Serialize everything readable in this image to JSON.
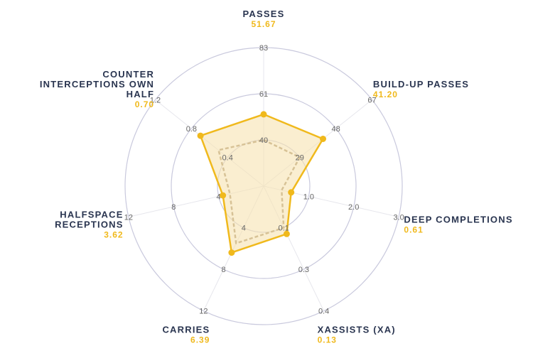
{
  "chart_data": {
    "type": "radar",
    "colors": {
      "player": "#f0b91c",
      "player_fill": "#f7e3b0",
      "average": "#a8926e",
      "ring": "#c9c9dd",
      "spoke": "#e6e6ec",
      "label": "#2a3550",
      "value": "#f0b91c",
      "tick": "#666666"
    },
    "axes": [
      {
        "name": "PASSES",
        "name_lines": [
          "PASSES"
        ],
        "value_text": "51.67",
        "value": 51.67,
        "average": 40,
        "ticks": [
          "40",
          "61",
          "83"
        ],
        "tick_values": [
          40,
          61,
          83
        ]
      },
      {
        "name": "BUILD-UP PASSES",
        "name_lines": [
          "BUILD-UP PASSES"
        ],
        "value_text": "41.20",
        "value": 41.2,
        "average": 29,
        "ticks": [
          "29",
          "48",
          "67"
        ],
        "tick_values": [
          29,
          48,
          67
        ]
      },
      {
        "name": "DEEP COMPLETIONS",
        "name_lines": [
          "DEEP COMPLETIONS"
        ],
        "value_text": "0.61",
        "value": 0.61,
        "average": 0.4,
        "ticks": [
          "1.0",
          "2.0",
          "3.0"
        ],
        "tick_values": [
          1.0,
          2.0,
          3.0
        ]
      },
      {
        "name": "XASSISTS (XA)",
        "name_lines": [
          "XASSISTS (XA)"
        ],
        "value_text": "0.13",
        "value": 0.13,
        "average": 0.1,
        "ticks": [
          "0.1",
          "0.3",
          "0.4"
        ],
        "tick_values": [
          0.1,
          0.3,
          0.4
        ]
      },
      {
        "name": "CARRIES",
        "name_lines": [
          "CARRIES"
        ],
        "value_text": "6.39",
        "value": 6.39,
        "average": 5.5,
        "ticks": [
          "4",
          "8",
          "12"
        ],
        "tick_values": [
          4,
          8,
          12
        ]
      },
      {
        "name": "HALFSPACE RECEPTIONS",
        "name_lines": [
          "HALFSPACE",
          "RECEPTIONS"
        ],
        "value_text": "3.62",
        "value": 3.62,
        "average": 3.0,
        "ticks": [
          "4",
          "8",
          "12"
        ],
        "tick_values": [
          4,
          8,
          12
        ]
      },
      {
        "name": "COUNTER INTERCEPTIONS OWN HALF",
        "name_lines": [
          "COUNTER",
          "INTERCEPTIONS OWN",
          "HALF"
        ],
        "value_text": "0.70",
        "value": 0.7,
        "average": 0.5,
        "ticks": [
          "0.4",
          "0.8",
          "1.2"
        ],
        "tick_values": [
          0.4,
          0.8,
          1.2
        ]
      }
    ]
  }
}
